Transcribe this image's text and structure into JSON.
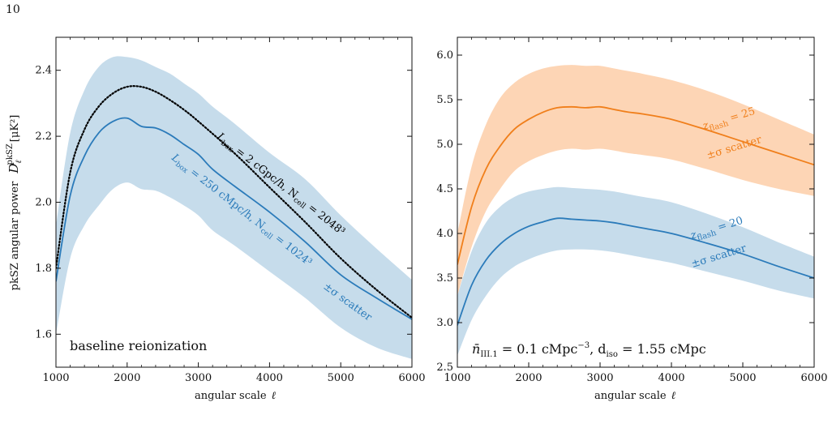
{
  "page_number": "10",
  "chart_data": [
    {
      "type": "line",
      "xlabel": "angular scale",
      "xlabel_symbol": "ℓ",
      "ylabel": "pkSZ angular power",
      "ylabel_symbol": "D",
      "ylabel_sub": "ℓ",
      "ylabel_sup": "pkSZ",
      "ylabel_unit": "[μK²]",
      "xlim": [
        1000,
        6000
      ],
      "ylim": [
        1.5,
        2.5
      ],
      "xticks": [
        1000,
        2000,
        3000,
        4000,
        5000,
        6000
      ],
      "yticks": [
        1.6,
        1.8,
        2.0,
        2.2,
        2.4
      ],
      "grid": false,
      "inset_text": "baseline reionization",
      "series": [
        {
          "color": "#2b7bba",
          "style": "solid",
          "x": [
            1000,
            1200,
            1400,
            1600,
            1800,
            2000,
            2200,
            2400,
            2600,
            2800,
            3000,
            3200,
            3500,
            4000,
            4500,
            5000,
            5500,
            6000
          ],
          "y": [
            1.76,
            2.02,
            2.14,
            2.21,
            2.245,
            2.255,
            2.23,
            2.225,
            2.205,
            2.175,
            2.145,
            2.1,
            2.05,
            1.97,
            1.88,
            1.78,
            1.71,
            1.645
          ],
          "band_upper": [
            1.93,
            2.21,
            2.34,
            2.41,
            2.44,
            2.44,
            2.43,
            2.41,
            2.39,
            2.36,
            2.33,
            2.29,
            2.24,
            2.15,
            2.07,
            1.96,
            1.86,
            1.765
          ],
          "band_lower": [
            1.6,
            1.83,
            1.93,
            1.99,
            2.04,
            2.06,
            2.04,
            2.035,
            2.015,
            1.99,
            1.96,
            1.915,
            1.87,
            1.79,
            1.71,
            1.62,
            1.56,
            1.525
          ]
        },
        {
          "color": "#000000",
          "style": "dotted",
          "x": [
            1000,
            1200,
            1400,
            1600,
            1800,
            2000,
            2200,
            2400,
            2600,
            2800,
            3000,
            3500,
            4000,
            4500,
            5000,
            5500,
            6000
          ],
          "y": [
            1.8,
            2.09,
            2.22,
            2.29,
            2.33,
            2.35,
            2.35,
            2.335,
            2.31,
            2.28,
            2.245,
            2.15,
            2.045,
            1.94,
            1.83,
            1.735,
            1.65
          ]
        }
      ],
      "annotations": [
        {
          "text_main": "L",
          "text_sub": "box",
          "text_rest": " = 2 cGpc/h, N",
          "text_sub2": "cell",
          "text_rest2": " = 2048³",
          "color": "#000000"
        },
        {
          "text_main": "L",
          "text_sub": "box",
          "text_rest": " = 250 cMpc/h, N",
          "text_sub2": "cell",
          "text_rest2": " = 1024³",
          "color": "#2b7bba"
        },
        {
          "text": "±σ scatter",
          "color": "#2b7bba"
        }
      ]
    },
    {
      "type": "line",
      "xlabel": "angular scale",
      "xlabel_symbol": "ℓ",
      "xlim": [
        1000,
        6000
      ],
      "ylim": [
        2.5,
        6.2
      ],
      "xticks": [
        1000,
        2000,
        3000,
        4000,
        5000,
        6000
      ],
      "yticks": [
        2.5,
        3.0,
        3.5,
        4.0,
        4.5,
        5.0,
        5.5,
        6.0
      ],
      "grid": false,
      "inset_text_parts": [
        "n̄",
        "III.1",
        " = 0.1 cMpc",
        "−3",
        ", d",
        "iso",
        " = 1.55 cMpc"
      ],
      "series": [
        {
          "color": "#f07f1b",
          "band_color": "#fdd5b5",
          "style": "solid",
          "x": [
            1000,
            1200,
            1400,
            1600,
            1800,
            2000,
            2200,
            2400,
            2600,
            2800,
            3000,
            3200,
            3400,
            3600,
            4000,
            4500,
            5000,
            5500,
            6000
          ],
          "y": [
            3.65,
            4.3,
            4.72,
            4.98,
            5.17,
            5.28,
            5.36,
            5.41,
            5.42,
            5.41,
            5.42,
            5.39,
            5.36,
            5.34,
            5.28,
            5.16,
            5.03,
            4.9,
            4.77
          ],
          "band_upper": [
            4.0,
            4.75,
            5.22,
            5.52,
            5.69,
            5.79,
            5.85,
            5.88,
            5.89,
            5.88,
            5.88,
            5.85,
            5.82,
            5.79,
            5.72,
            5.6,
            5.45,
            5.28,
            5.11
          ],
          "band_lower": [
            3.3,
            3.85,
            4.25,
            4.5,
            4.7,
            4.81,
            4.88,
            4.93,
            4.95,
            4.94,
            4.95,
            4.93,
            4.9,
            4.88,
            4.83,
            4.72,
            4.6,
            4.5,
            4.42
          ]
        },
        {
          "color": "#2b7bba",
          "band_color": "#c6dceb",
          "style": "solid",
          "x": [
            1000,
            1200,
            1400,
            1600,
            1800,
            2000,
            2200,
            2400,
            2600,
            2800,
            3000,
            3200,
            3400,
            3600,
            4000,
            4500,
            5000,
            5500,
            6000
          ],
          "y": [
            2.97,
            3.42,
            3.7,
            3.88,
            4.0,
            4.08,
            4.13,
            4.17,
            4.16,
            4.15,
            4.14,
            4.12,
            4.09,
            4.06,
            4.0,
            3.89,
            3.77,
            3.63,
            3.5
          ],
          "band_upper": [
            3.3,
            3.8,
            4.12,
            4.3,
            4.41,
            4.47,
            4.5,
            4.52,
            4.51,
            4.5,
            4.49,
            4.47,
            4.44,
            4.41,
            4.35,
            4.22,
            4.07,
            3.9,
            3.74
          ],
          "band_lower": [
            2.63,
            3.03,
            3.3,
            3.5,
            3.63,
            3.71,
            3.77,
            3.81,
            3.82,
            3.82,
            3.81,
            3.79,
            3.76,
            3.73,
            3.67,
            3.57,
            3.47,
            3.36,
            3.27
          ]
        }
      ],
      "annotations": [
        {
          "text_main": "z",
          "text_sub": "flash",
          "text_rest": " = 25",
          "color": "#f07f1b"
        },
        {
          "text": "±σ scatter",
          "color": "#f07f1b"
        },
        {
          "text_main": "z",
          "text_sub": "flash",
          "text_rest": " = 20",
          "color": "#2b7bba"
        },
        {
          "text": "±σ scatter",
          "color": "#2b7bba"
        }
      ]
    }
  ]
}
